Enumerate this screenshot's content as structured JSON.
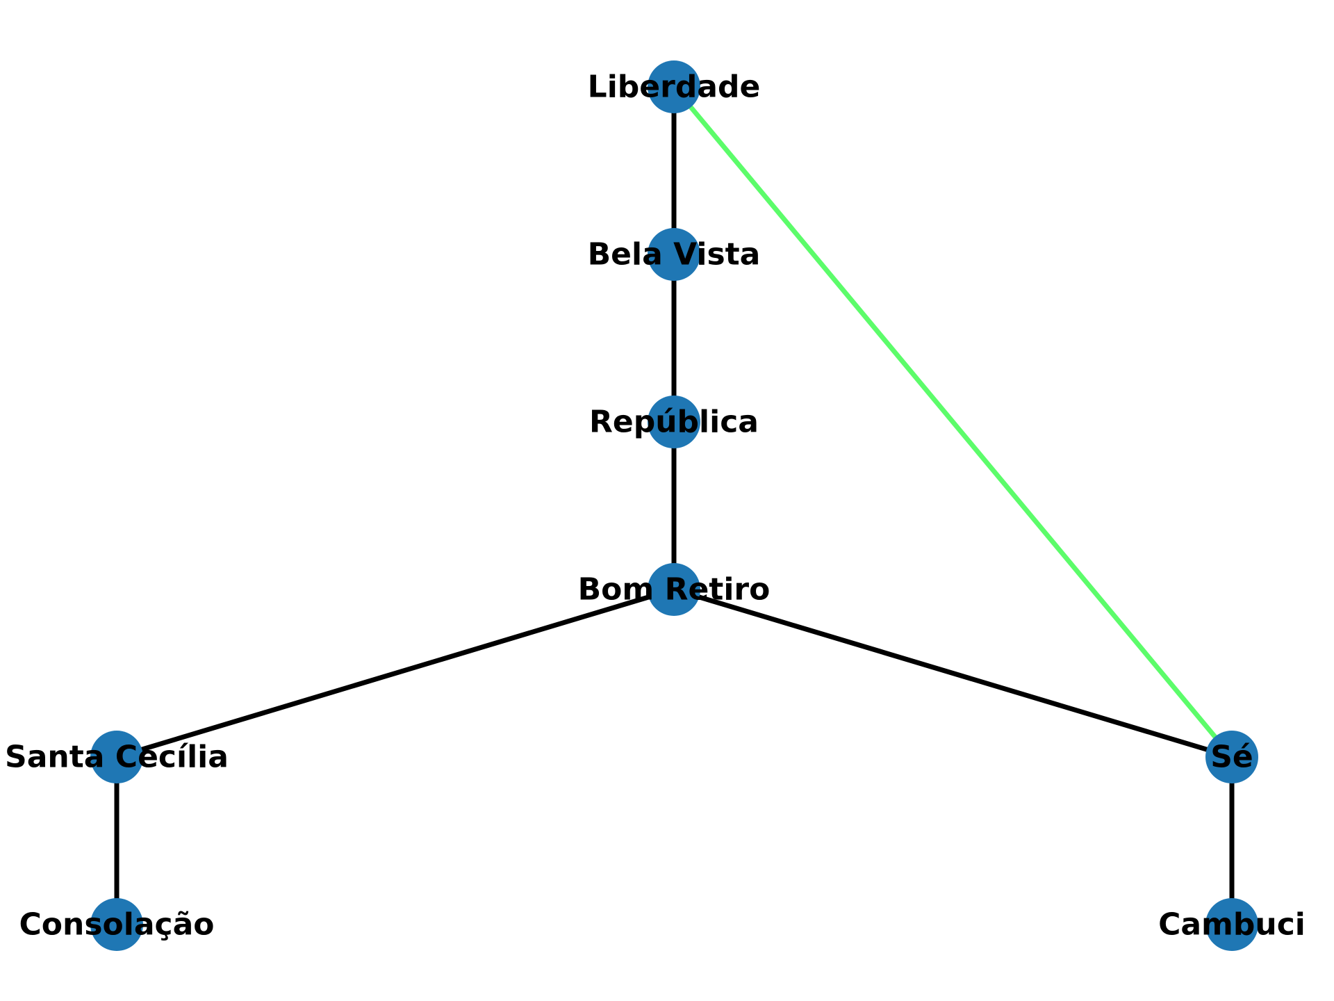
{
  "colors": {
    "node": "#1f77b4",
    "edge_default": "#000000",
    "edge_highlight": "#5cfc6a",
    "background": "#ffffff"
  },
  "nodes": [
    {
      "id": "liberdade",
      "label": "Liberdade"
    },
    {
      "id": "bela-vista",
      "label": "Bela Vista"
    },
    {
      "id": "republica",
      "label": "República"
    },
    {
      "id": "bom-retiro",
      "label": "Bom Retiro"
    },
    {
      "id": "santa-cecilia",
      "label": "Santa Cecília"
    },
    {
      "id": "se",
      "label": "Sé"
    },
    {
      "id": "consolacao",
      "label": "Consolação"
    },
    {
      "id": "cambuci",
      "label": "Cambuci"
    }
  ],
  "edges": [
    {
      "source": "liberdade",
      "target": "bela-vista",
      "highlight": false
    },
    {
      "source": "bela-vista",
      "target": "republica",
      "highlight": false
    },
    {
      "source": "republica",
      "target": "bom-retiro",
      "highlight": false
    },
    {
      "source": "bom-retiro",
      "target": "santa-cecilia",
      "highlight": false
    },
    {
      "source": "bom-retiro",
      "target": "se",
      "highlight": false
    },
    {
      "source": "santa-cecilia",
      "target": "consolacao",
      "highlight": false
    },
    {
      "source": "se",
      "target": "cambuci",
      "highlight": false
    },
    {
      "source": "liberdade",
      "target": "se",
      "highlight": true
    }
  ]
}
